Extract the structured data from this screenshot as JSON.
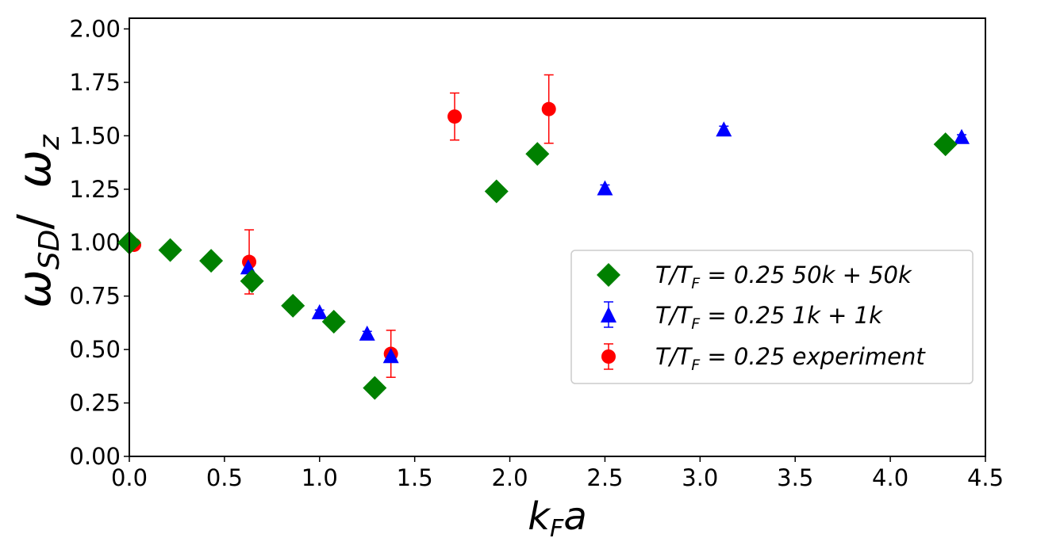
{
  "chart_data": {
    "type": "scatter",
    "title": "",
    "xlabel": "k_F a",
    "xlabel_main": "k",
    "xlabel_sub": "F",
    "xlabel_tail": "a",
    "ylabel": "ω_SD/ ω_z",
    "ylabel_main1": "ω",
    "ylabel_sub1": "SD",
    "ylabel_mid": "/ ",
    "ylabel_main2": "ω",
    "ylabel_sub2": "z",
    "xlim": [
      0,
      4.5
    ],
    "ylim": [
      0,
      2.05
    ],
    "xticks": [
      0.0,
      0.5,
      1.0,
      1.5,
      2.0,
      2.5,
      3.0,
      3.5,
      4.0,
      4.5
    ],
    "xtick_labels": [
      "0.0",
      "0.5",
      "1.0",
      "1.5",
      "2.0",
      "2.5",
      "3.0",
      "3.5",
      "4.0",
      "4.5"
    ],
    "yticks": [
      0.0,
      0.25,
      0.5,
      0.75,
      1.0,
      1.25,
      1.5,
      1.75,
      2.0
    ],
    "ytick_labels": [
      "0.00",
      "0.25",
      "0.50",
      "0.75",
      "1.00",
      "1.25",
      "1.50",
      "1.75",
      "2.00"
    ],
    "legend_position": "center-right",
    "series": [
      {
        "name": "T/T_F = 0.25 50k + 50k",
        "legend_prefix": "T/T",
        "legend_sub": "F",
        "legend_suffix": " = 0.25 50k + 50k",
        "marker": "diamond",
        "color": "#008000",
        "points": [
          {
            "x": 0.0,
            "y": 1.0
          },
          {
            "x": 0.215,
            "y": 0.965
          },
          {
            "x": 0.43,
            "y": 0.915
          },
          {
            "x": 0.645,
            "y": 0.82
          },
          {
            "x": 0.86,
            "y": 0.705
          },
          {
            "x": 1.075,
            "y": 0.63
          },
          {
            "x": 1.29,
            "y": 0.32
          },
          {
            "x": 1.93,
            "y": 1.24
          },
          {
            "x": 2.145,
            "y": 1.415
          },
          {
            "x": 4.29,
            "y": 1.46
          }
        ]
      },
      {
        "name": "T/T_F = 0.25 1k + 1k",
        "legend_prefix": "T/T",
        "legend_sub": "F",
        "legend_suffix": " = 0.25 1k + 1k",
        "marker": "triangle",
        "color": "#0000ff",
        "points": [
          {
            "x": 0.625,
            "y": 0.885,
            "err": 0.01
          },
          {
            "x": 1.0,
            "y": 0.675,
            "err": 0.01
          },
          {
            "x": 1.25,
            "y": 0.575,
            "err": 0.01
          },
          {
            "x": 1.375,
            "y": 0.47,
            "err": 0.01
          },
          {
            "x": 2.5,
            "y": 1.255,
            "err": 0.015
          },
          {
            "x": 3.125,
            "y": 1.53,
            "err": 0.015
          },
          {
            "x": 4.375,
            "y": 1.495,
            "err": 0.01
          }
        ]
      },
      {
        "name": "T/T_F = 0.25 experiment",
        "legend_prefix": "T/T",
        "legend_sub": "F",
        "legend_suffix": " = 0.25 experiment",
        "marker": "circle",
        "color": "#ff0000",
        "points": [
          {
            "x": 0.025,
            "y": 0.99,
            "err": 0.0
          },
          {
            "x": 0.63,
            "y": 0.91,
            "err": 0.15
          },
          {
            "x": 1.375,
            "y": 0.48,
            "err": 0.11
          },
          {
            "x": 1.71,
            "y": 1.59,
            "err": 0.11
          },
          {
            "x": 2.205,
            "y": 1.625,
            "err": 0.16
          }
        ]
      }
    ]
  }
}
